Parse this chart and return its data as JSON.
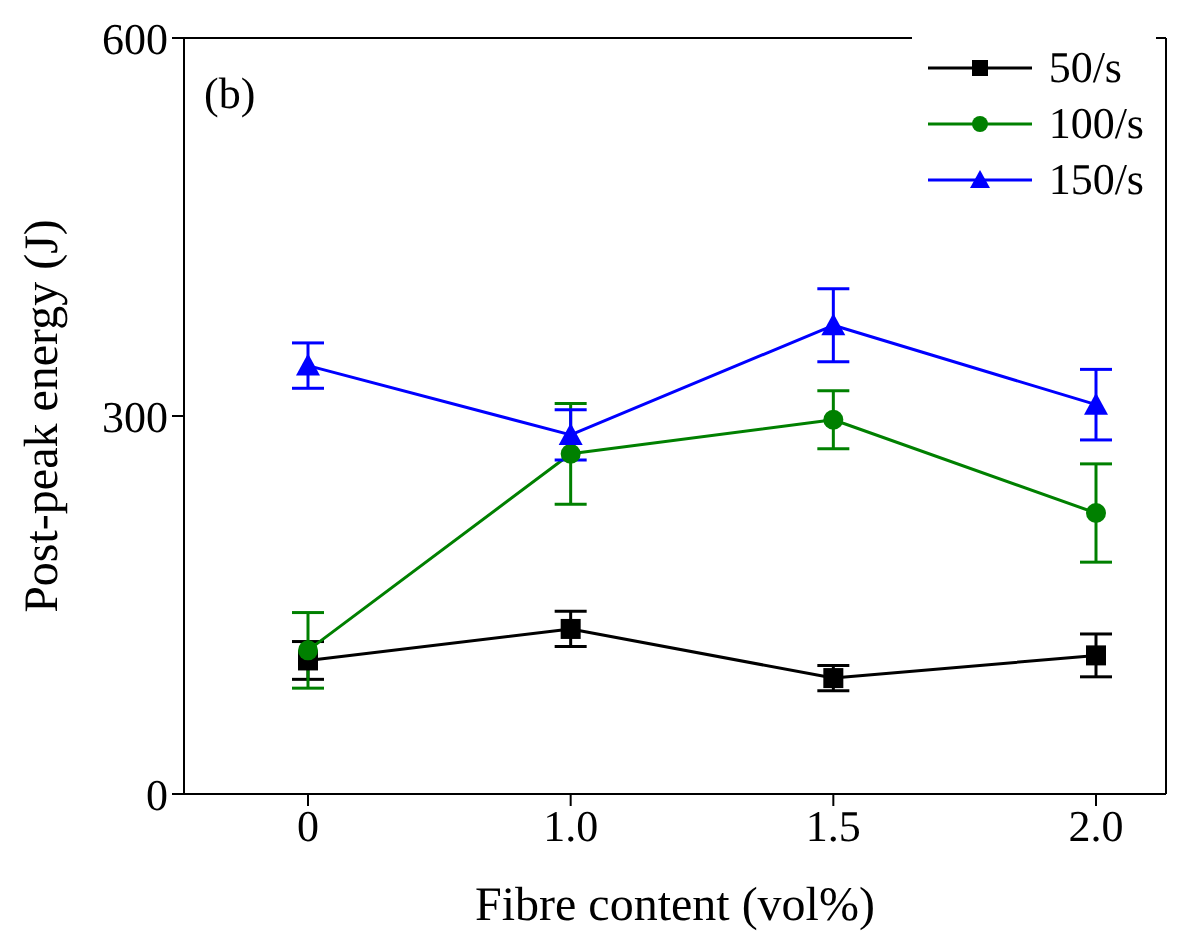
{
  "chart_data": {
    "type": "line",
    "xlabel": "Fibre content (vol%)",
    "ylabel": "Post-peak energy (J)",
    "categories": [
      "0",
      "1.0",
      "1.5",
      "2.0"
    ],
    "ylim": [
      0,
      600
    ],
    "yticks": [
      0,
      300,
      600
    ],
    "grid": false,
    "legend": "top right",
    "line_style": "solid",
    "annotations": [
      "(b)"
    ],
    "series": [
      {
        "name": "50/s",
        "color": "#000000",
        "marker": "square",
        "values": [
          106,
          131,
          92,
          110
        ],
        "errors": [
          15,
          14,
          10,
          17
        ]
      },
      {
        "name": "100/s",
        "color": "#008000",
        "marker": "circle",
        "values": [
          114,
          270,
          297,
          223
        ],
        "errors": [
          30,
          40,
          23,
          39
        ]
      },
      {
        "name": "150/s",
        "color": "#0000ff",
        "marker": "triangle",
        "values": [
          340,
          285,
          372,
          309
        ],
        "errors": [
          18,
          20,
          29,
          28
        ]
      }
    ]
  }
}
